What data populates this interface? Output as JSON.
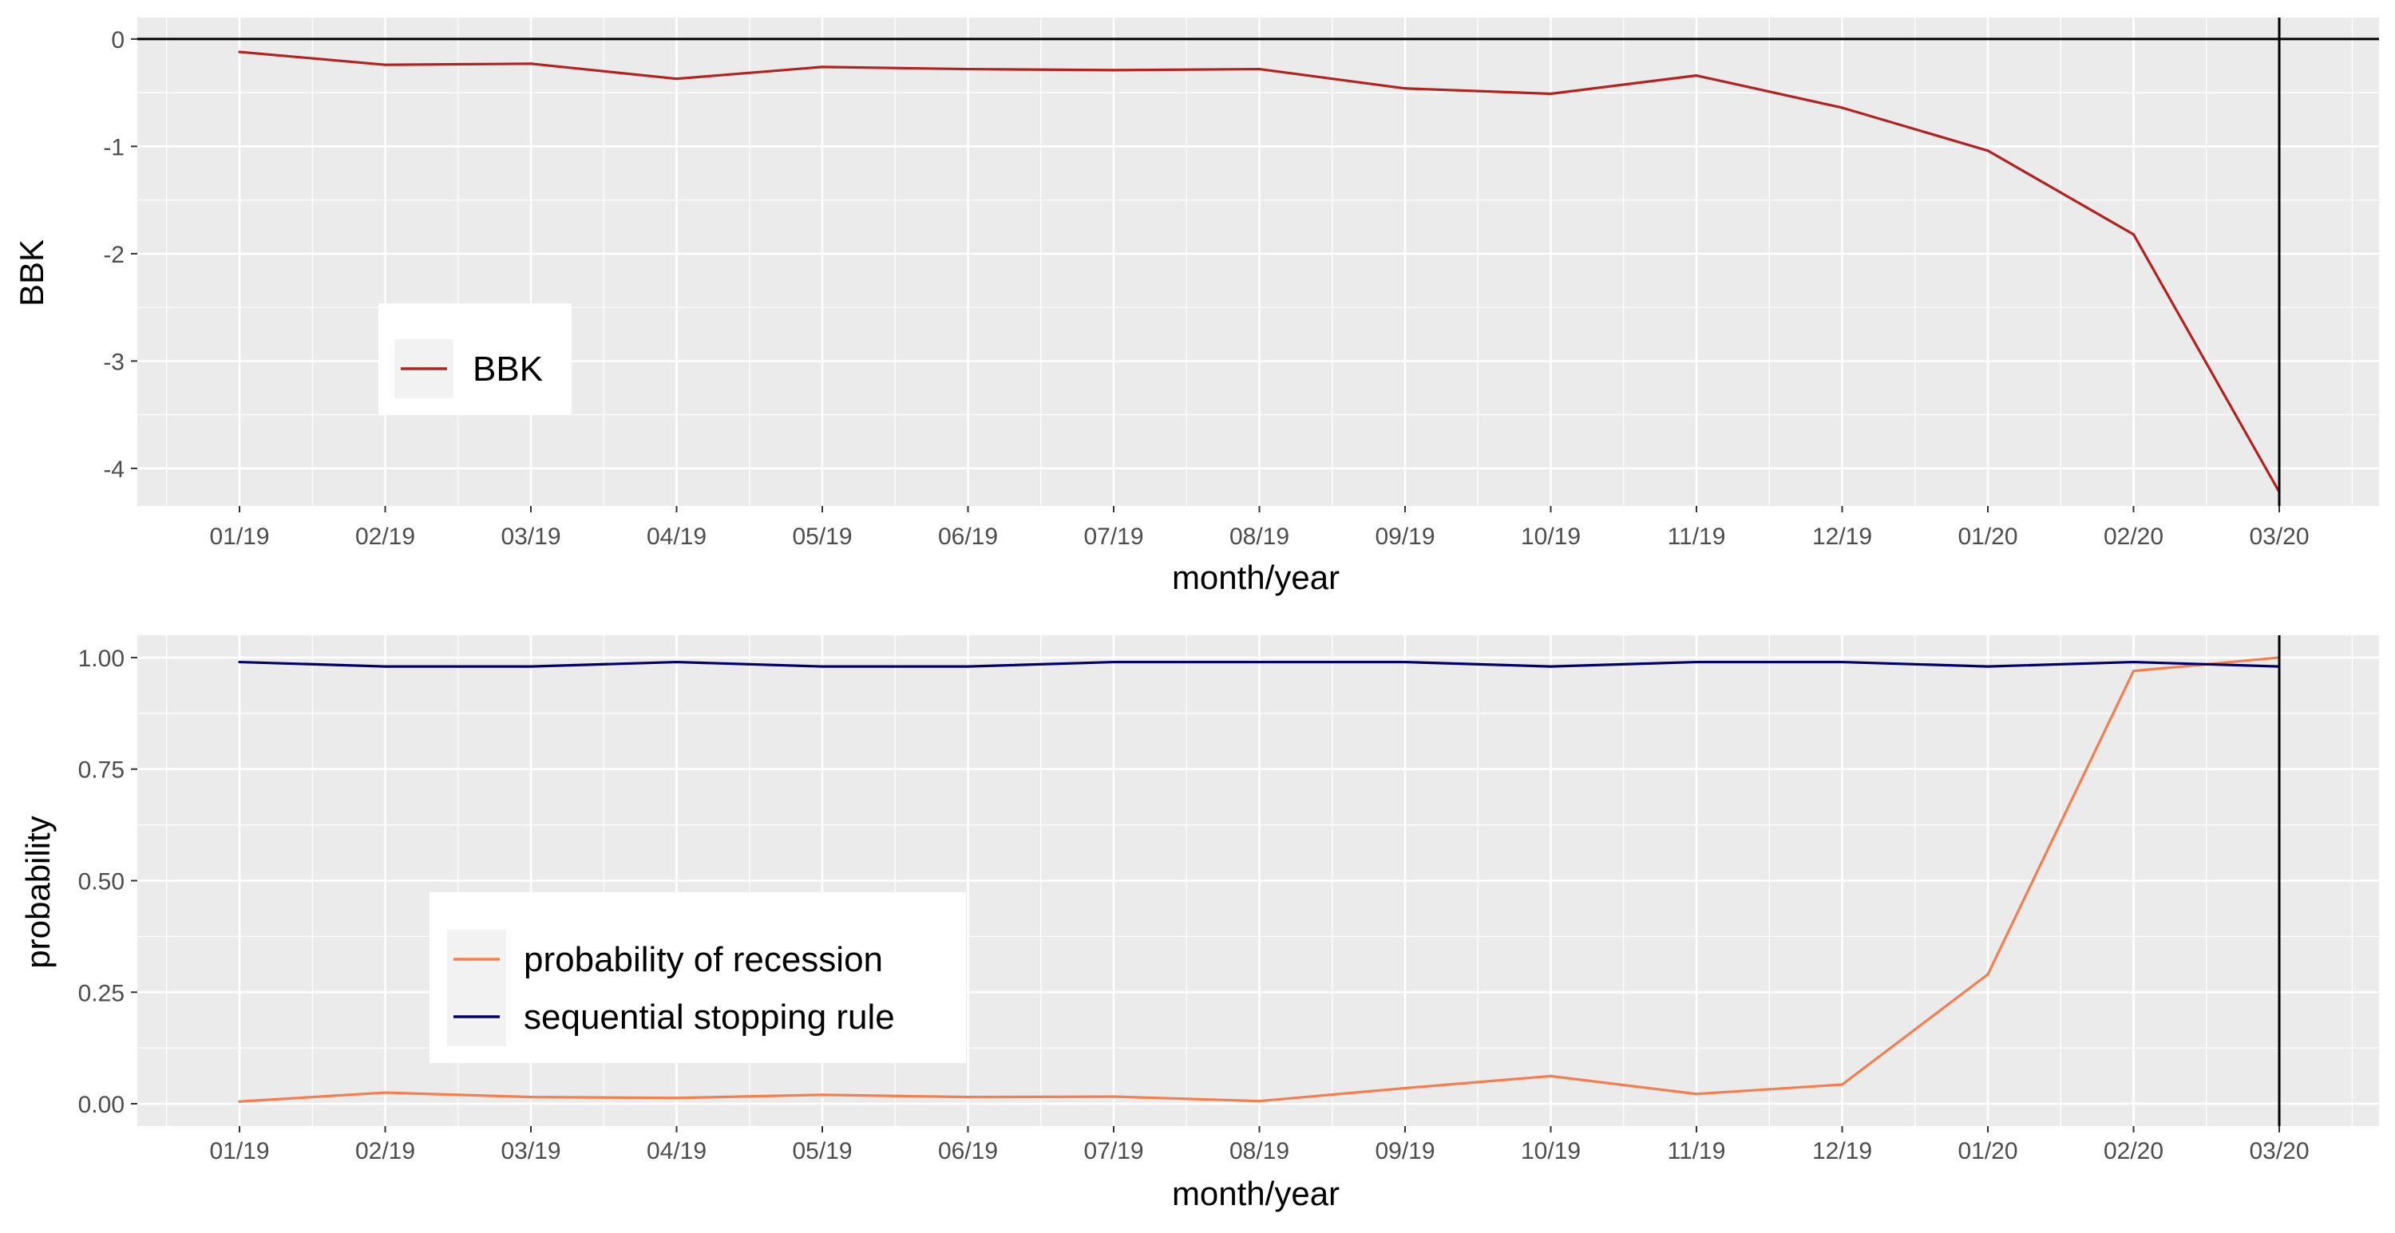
{
  "chart_data": [
    {
      "type": "line",
      "xlabel": "month/year",
      "ylabel": "BBK",
      "categories": [
        "01/19",
        "02/19",
        "03/19",
        "04/19",
        "05/19",
        "06/19",
        "07/19",
        "08/19",
        "09/19",
        "10/19",
        "11/19",
        "12/19",
        "01/20",
        "02/20",
        "03/20"
      ],
      "ylim": [
        -4.35,
        0.2
      ],
      "yticks": [
        0,
        -1,
        -2,
        -3,
        -4
      ],
      "ytick_labels": [
        "0",
        "-1",
        "-2",
        "-3",
        "-4"
      ],
      "hline": 0,
      "vline_at": "03/20",
      "grid": true,
      "legend_position": "left-middle",
      "series": [
        {
          "name": "BBK",
          "color": "#b2221e",
          "values": [
            -0.12,
            -0.24,
            -0.23,
            -0.37,
            -0.26,
            -0.28,
            -0.29,
            -0.28,
            -0.46,
            -0.51,
            -0.34,
            -0.64,
            -1.04,
            -1.82,
            -4.22
          ]
        }
      ]
    },
    {
      "type": "line",
      "xlabel": "month/year",
      "ylabel": "probability",
      "categories": [
        "01/19",
        "02/19",
        "03/19",
        "04/19",
        "05/19",
        "06/19",
        "07/19",
        "08/19",
        "09/19",
        "10/19",
        "11/19",
        "12/19",
        "01/20",
        "02/20",
        "03/20"
      ],
      "ylim": [
        -0.05,
        1.05
      ],
      "yticks": [
        0,
        0.25,
        0.5,
        0.75,
        1.0
      ],
      "ytick_labels": [
        "0.00",
        "0.25",
        "0.50",
        "0.75",
        "1.00"
      ],
      "vline_at": "03/20",
      "grid": true,
      "legend_position": "left-bottom",
      "series": [
        {
          "name": "probability of recession",
          "color": "#f57e4e",
          "values": [
            0.005,
            0.025,
            0.015,
            0.013,
            0.02,
            0.015,
            0.016,
            0.006,
            0.035,
            0.062,
            0.022,
            0.043,
            0.29,
            0.97,
            1.0
          ]
        },
        {
          "name": "sequential stopping rule",
          "color": "#00006b",
          "values": [
            0.99,
            0.98,
            0.98,
            0.99,
            0.98,
            0.98,
            0.99,
            0.99,
            0.99,
            0.98,
            0.99,
            0.99,
            0.98,
            0.99,
            0.98
          ]
        }
      ]
    }
  ]
}
